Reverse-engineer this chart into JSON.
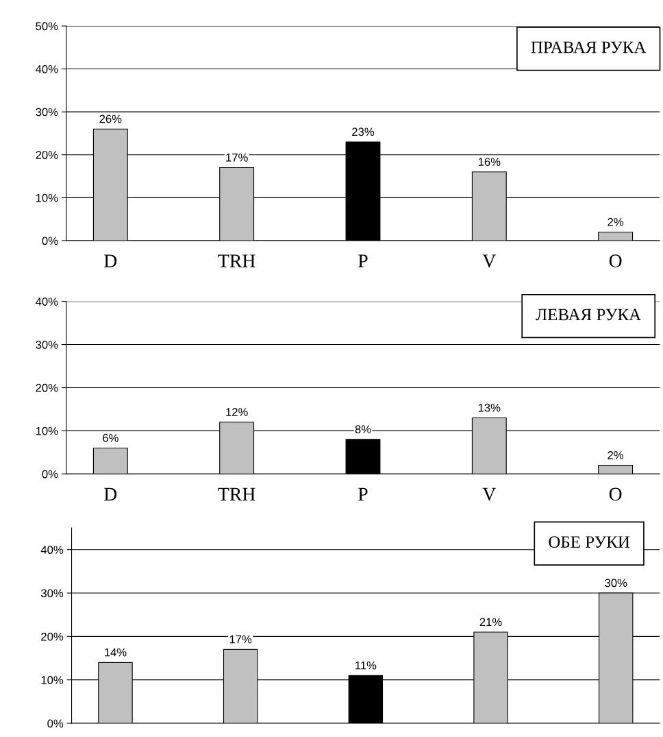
{
  "chart_data": [
    {
      "type": "bar",
      "title": "ПРАВАЯ РУКА",
      "categories": [
        "D",
        "TRH",
        "P",
        "V",
        "O"
      ],
      "values": [
        26,
        17,
        23,
        16,
        2
      ],
      "colors": [
        "#c0c0c0",
        "#c0c0c0",
        "#000000",
        "#c0c0c0",
        "#c0c0c0"
      ],
      "value_labels": [
        "26%",
        "17%",
        "23%",
        "16%",
        "2%"
      ],
      "ylim": [
        0,
        50
      ],
      "yticks": [
        {
          "value": 0,
          "label": "0%"
        },
        {
          "value": 10,
          "label": "10%"
        },
        {
          "value": 20,
          "label": "20%"
        },
        {
          "value": 30,
          "label": "30%"
        },
        {
          "value": 40,
          "label": "40%"
        },
        {
          "value": 50,
          "label": "50%"
        }
      ],
      "grid": "y",
      "legend": false
    },
    {
      "type": "bar",
      "title": "ЛЕВАЯ РУКА",
      "categories": [
        "D",
        "TRH",
        "P",
        "V",
        "O"
      ],
      "values": [
        6,
        12,
        8,
        13,
        2
      ],
      "colors": [
        "#c0c0c0",
        "#c0c0c0",
        "#000000",
        "#c0c0c0",
        "#c0c0c0"
      ],
      "value_labels": [
        "6%",
        "12%",
        "8%",
        "13%",
        "2%"
      ],
      "ylim": [
        0,
        40
      ],
      "yticks": [
        {
          "value": 0,
          "label": "0%"
        },
        {
          "value": 10,
          "label": "10%"
        },
        {
          "value": 20,
          "label": "20%"
        },
        {
          "value": 30,
          "label": "30%"
        },
        {
          "value": 40,
          "label": "40%"
        }
      ],
      "grid": "y",
      "legend": false
    },
    {
      "type": "bar",
      "title": "ОБЕ РУКИ",
      "categories": [
        null,
        null,
        null,
        null,
        null
      ],
      "values": [
        14,
        17,
        11,
        21,
        30
      ],
      "colors": [
        "#c0c0c0",
        "#c0c0c0",
        "#000000",
        "#c0c0c0",
        "#c0c0c0"
      ],
      "value_labels": [
        "14%",
        "17%",
        "11%",
        "21%",
        "30%"
      ],
      "ylim": [
        0,
        45
      ],
      "yticks": [
        {
          "value": 0,
          "label": "0%"
        },
        {
          "value": 10,
          "label": "10%"
        },
        {
          "value": 20,
          "label": "20%"
        },
        {
          "value": 30,
          "label": "30%"
        },
        {
          "value": 40,
          "label": "40%"
        }
      ],
      "grid": "y",
      "legend": false
    }
  ]
}
